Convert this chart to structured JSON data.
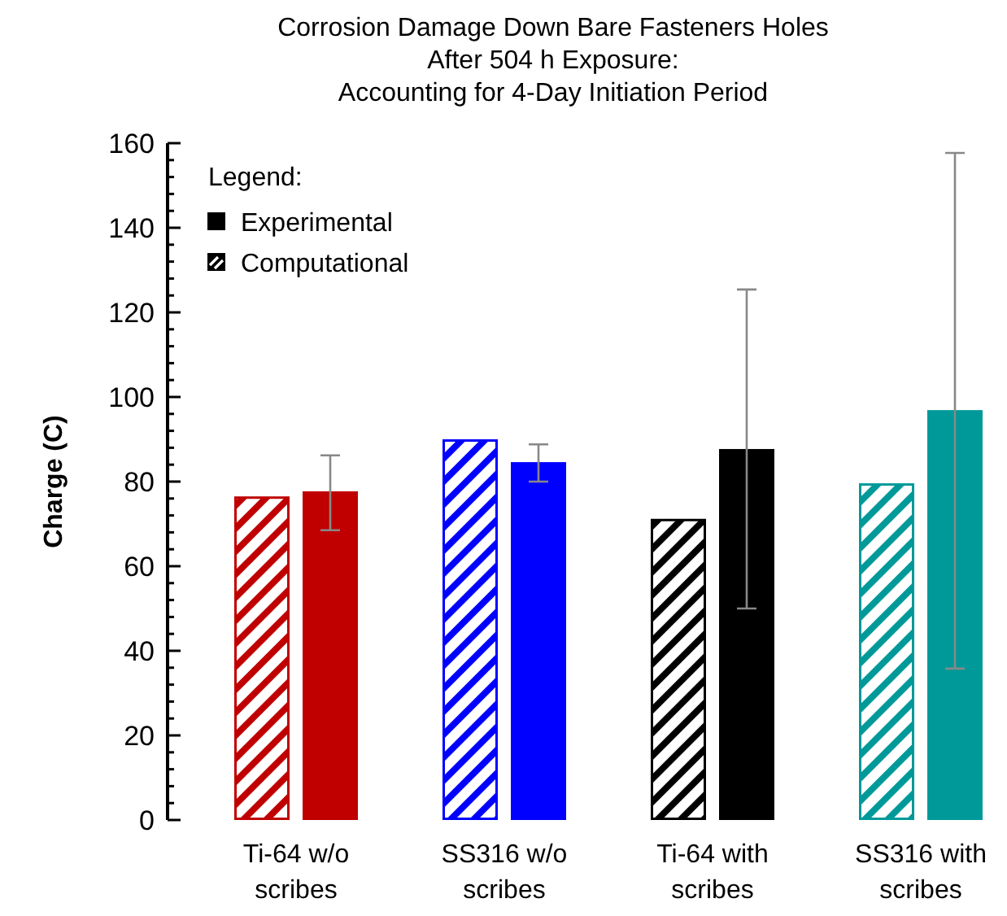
{
  "chart_data": {
    "type": "bar",
    "title": "Corrosion Damage Down Bare Fasteners Holes\nAfter 504 h Exposure:\nAccounting for 4-Day Initiation Period",
    "ylabel": "Charge (C)",
    "legend_title": "Legend:",
    "legend": "top left",
    "categories": [
      "Ti-64 w/o scribes",
      "SS316 w/o scribes",
      "Ti-64 with scribes",
      "SS316 with scribes"
    ],
    "series": [
      {
        "name": "Computational",
        "color": "#000000",
        "colors": [
          "#c00000",
          "#0000ff",
          "#000000",
          "#009999"
        ],
        "values": [
          76.5,
          90,
          71.2,
          79.6
        ]
      },
      {
        "name": "Experimental",
        "color": "#000000",
        "colors": [
          "#c00000",
          "#0000ff",
          "#000000",
          "#009999"
        ],
        "values": [
          77.7,
          84.6,
          87.7,
          96.9
        ],
        "errors": [
          [
            68.5,
            86.2
          ],
          [
            80,
            88.8
          ],
          [
            50,
            125.4
          ],
          [
            35.8,
            157.7
          ]
        ]
      }
    ],
    "ylim": [
      0,
      160
    ],
    "yticks": [
      0,
      {
        "value": 4,
        "label": null
      },
      {
        "value": 8,
        "label": null
      },
      {
        "value": 12,
        "label": null
      },
      {
        "value": 16,
        "label": null
      },
      20,
      {
        "value": 24,
        "label": null
      },
      {
        "value": 28,
        "label": null
      },
      {
        "value": 32,
        "label": null
      },
      {
        "value": 36,
        "label": null
      },
      40,
      {
        "value": 44,
        "label": null
      },
      {
        "value": 48,
        "label": null
      },
      {
        "value": 52,
        "label": null
      },
      {
        "value": 56,
        "label": null
      },
      60,
      {
        "value": 64,
        "label": null
      },
      {
        "value": 68,
        "label": null
      },
      {
        "value": 72,
        "label": null
      },
      {
        "value": 76,
        "label": null
      },
      80,
      {
        "value": 84,
        "label": null
      },
      {
        "value": 88,
        "label": null
      },
      {
        "value": 92,
        "label": null
      },
      {
        "value": 96,
        "label": null
      },
      100,
      {
        "value": 104,
        "label": null
      },
      {
        "value": 108,
        "label": null
      },
      {
        "value": 112,
        "label": null
      },
      {
        "value": 116,
        "label": null
      },
      120,
      {
        "value": 124,
        "label": null
      },
      {
        "value": 128,
        "label": null
      },
      {
        "value": 132,
        "label": null
      },
      {
        "value": 136,
        "label": null
      },
      140,
      {
        "value": 144,
        "label": null
      },
      {
        "value": 148,
        "label": null
      },
      {
        "value": 152,
        "label": null
      },
      {
        "value": 156,
        "label": null
      },
      160
    ]
  }
}
